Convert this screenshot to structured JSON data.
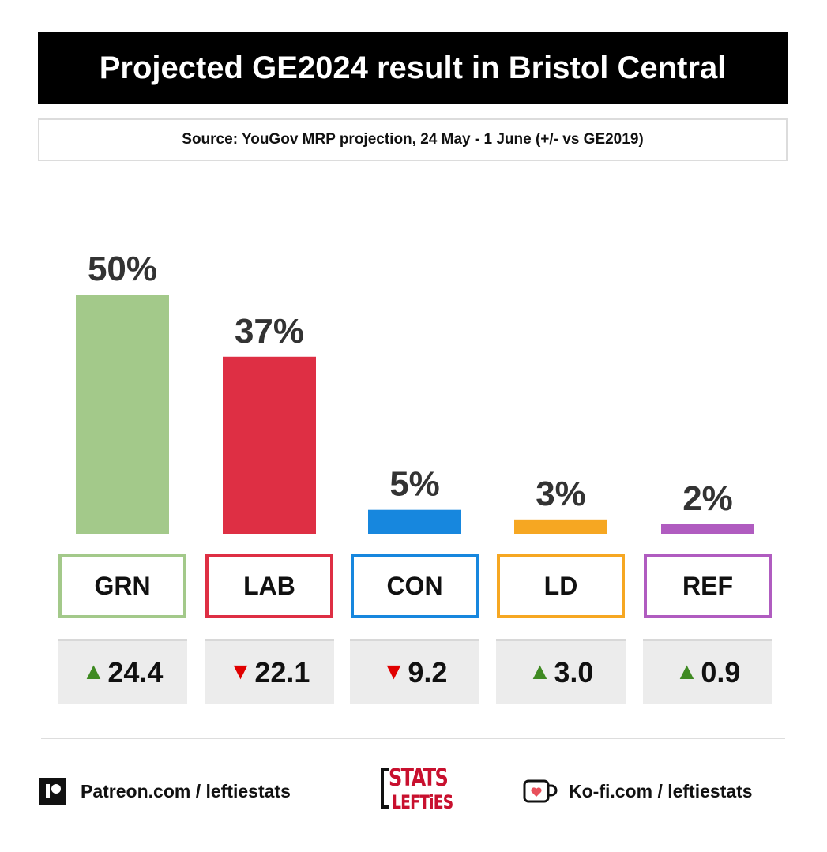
{
  "header": {
    "title": "Projected GE2024 result in Bristol Central",
    "source": "Source: YouGov MRP projection, 24 May - 1 June (+/- vs GE2019)"
  },
  "chart_data": {
    "type": "bar",
    "title": "Projected GE2024 result in Bristol Central",
    "categories": [
      "GRN",
      "LAB",
      "CON",
      "LD",
      "REF"
    ],
    "values": [
      50,
      37,
      5,
      3,
      2
    ],
    "value_labels": [
      "50%",
      "37%",
      "5%",
      "3%",
      "2%"
    ],
    "changes": [
      {
        "direction": "up",
        "value": "24.4"
      },
      {
        "direction": "down",
        "value": "22.1"
      },
      {
        "direction": "down",
        "value": "9.2"
      },
      {
        "direction": "up",
        "value": "3.0"
      },
      {
        "direction": "up",
        "value": "0.9"
      }
    ],
    "colors": [
      "#a3c98a",
      "#de2f44",
      "#1787de",
      "#f6a722",
      "#b05cc0"
    ],
    "ylim": [
      0,
      50
    ],
    "grid": false,
    "legend": "none"
  },
  "footer": {
    "patreon": "Patreon.com / leftiestats",
    "logo_top": "STATS",
    "logo_bottom": "LEFTiES",
    "kofi": "Ko-fi.com / leftiestats"
  }
}
